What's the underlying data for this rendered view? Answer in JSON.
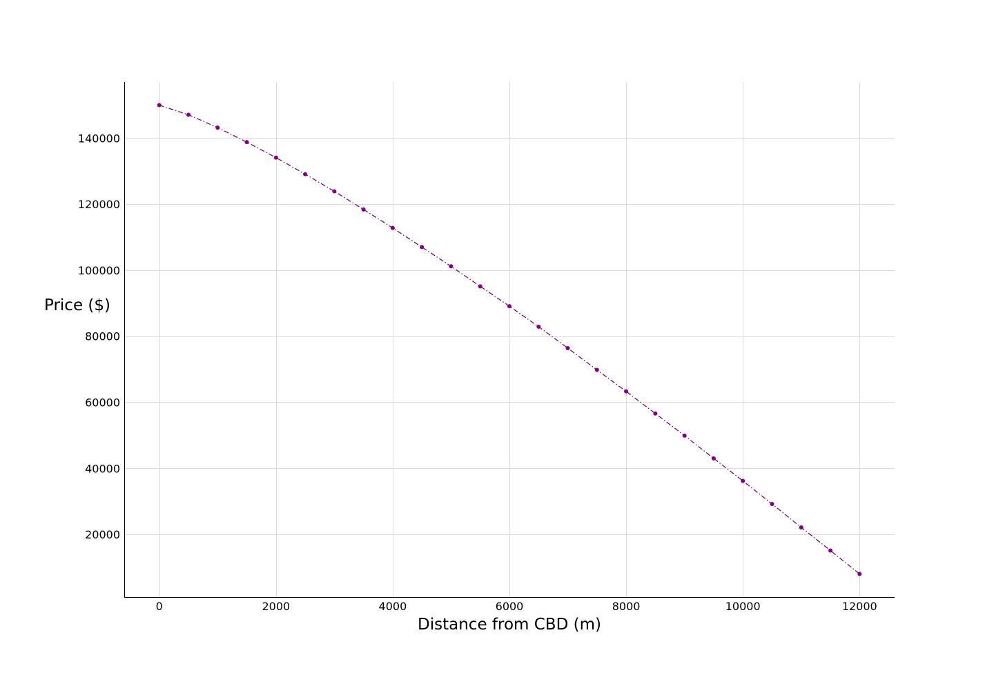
{
  "chart_data": {
    "type": "line",
    "title": "",
    "xlabel": "Distance from CBD (m)",
    "ylabel": "Price ($)",
    "xlim": [
      -600,
      12600
    ],
    "ylim": [
      1000,
      157000
    ],
    "xticks": [
      0,
      2000,
      4000,
      6000,
      8000,
      10000,
      12000
    ],
    "yticks": [
      20000,
      40000,
      60000,
      80000,
      100000,
      120000,
      140000
    ],
    "grid": true,
    "legend": "none",
    "line_style": "dash-dot",
    "marker": "circle",
    "color": "#800080",
    "series": [
      {
        "x": [
          0,
          500,
          1000,
          1500,
          2000,
          2500,
          3000,
          3500,
          4000,
          4500,
          5000,
          5500,
          6000,
          6500,
          7000,
          7500,
          8000,
          8500,
          9000,
          9500,
          10000,
          10500,
          11000,
          11500,
          12000
        ],
        "values": [
          150000,
          147100,
          143200,
          138800,
          134100,
          129100,
          123900,
          118400,
          112800,
          107000,
          101200,
          95100,
          89100,
          82900,
          76400,
          69800,
          63300,
          56600,
          49900,
          43000,
          36200,
          29200,
          22100,
          15100,
          8000
        ]
      }
    ]
  }
}
